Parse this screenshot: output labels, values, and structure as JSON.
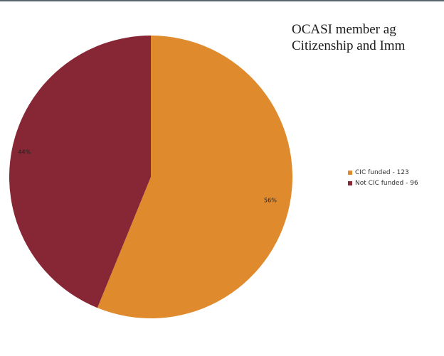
{
  "chart_data": {
    "type": "pie",
    "title_lines": [
      "OCASI member ag",
      "Citizenship and Imm"
    ],
    "slices": [
      {
        "label": "CIC funded - 123",
        "value": 123,
        "percent_label": "56%",
        "color": "#e08a2e"
      },
      {
        "label": "Not CIC funded - 96",
        "value": 96,
        "percent_label": "44%",
        "color": "#872634"
      }
    ],
    "start_angle_deg": 0,
    "direction": "clockwise",
    "legend_position": "right"
  }
}
